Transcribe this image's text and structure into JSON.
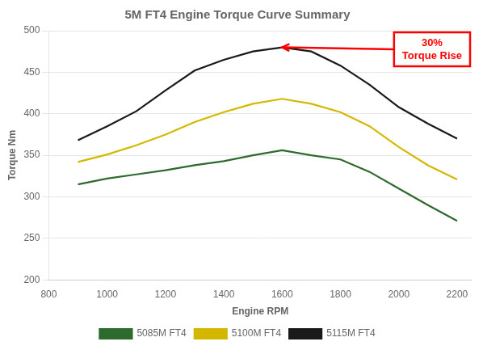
{
  "chart_data": {
    "type": "line",
    "title": "5M FT4 Engine Torque Curve Summary",
    "xlabel": "Engine RPM",
    "ylabel": "Torque Nm",
    "x": [
      900,
      1000,
      1100,
      1200,
      1300,
      1400,
      1500,
      1600,
      1700,
      1800,
      1900,
      2000,
      2100,
      2200
    ],
    "series": [
      {
        "name": "5085M FT4",
        "color": "#2d6a2d",
        "values": [
          315,
          322,
          327,
          332,
          338,
          343,
          350,
          356,
          350,
          345,
          330,
          310,
          290,
          271
        ]
      },
      {
        "name": "5100M FT4",
        "color": "#d4b800",
        "values": [
          342,
          351,
          362,
          375,
          390,
          402,
          412,
          418,
          412,
          402,
          385,
          360,
          338,
          321
        ]
      },
      {
        "name": "5115M FT4",
        "color": "#1a1a1a",
        "values": [
          368,
          385,
          403,
          428,
          452,
          465,
          475,
          480,
          475,
          458,
          435,
          408,
          388,
          370
        ]
      }
    ],
    "xlim": [
      800,
      2250
    ],
    "ylim": [
      200,
      500
    ],
    "xticks": [
      800,
      1000,
      1200,
      1400,
      1600,
      1800,
      2000,
      2200
    ],
    "yticks": [
      200,
      250,
      300,
      350,
      400,
      450,
      500
    ],
    "grid": "y",
    "legend": "bottom",
    "annotations": [
      "30%\nTorque Rise"
    ]
  }
}
